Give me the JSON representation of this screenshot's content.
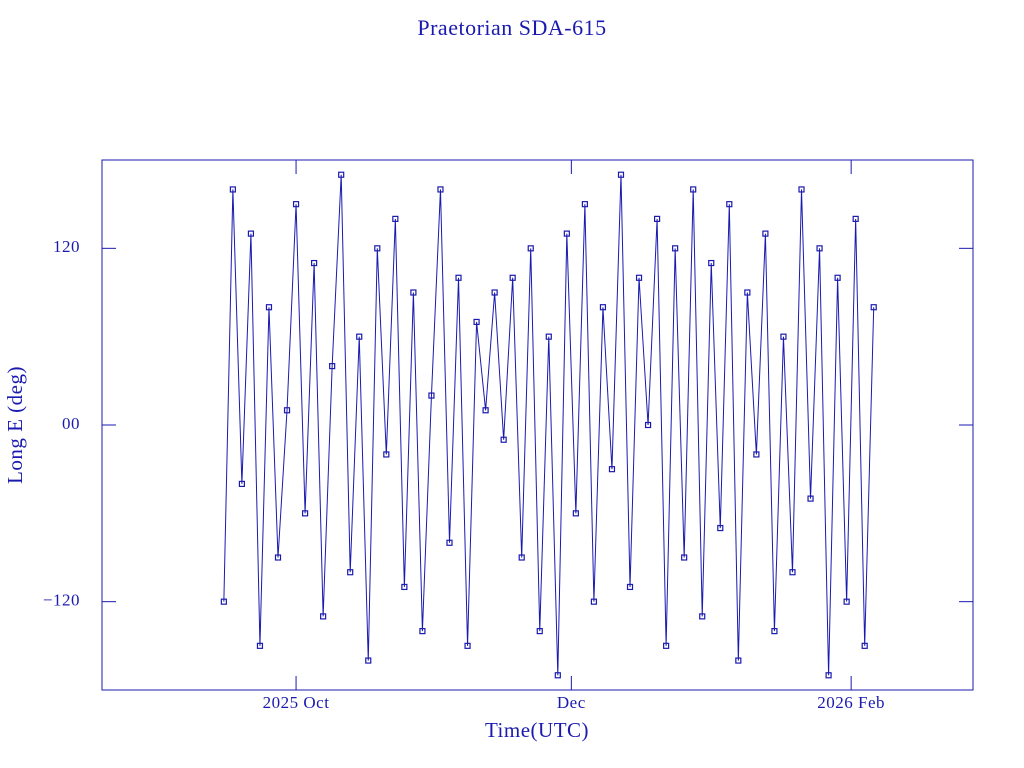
{
  "chart_data": {
    "type": "line",
    "title": "Praetorian SDA-615",
    "x_label": "Time(UTC)",
    "y_label": "Long E (deg)",
    "color": "#1a1ab0",
    "markers": true,
    "xlim": [
      "2025-08-19",
      "2026-02-28"
    ],
    "xticks": [
      {
        "value": "2025-10-01",
        "label": "2025 Oct"
      },
      {
        "value": "2025-12-01",
        "label": "Dec"
      },
      {
        "value": "2026-02-01",
        "label": "2026 Feb"
      }
    ],
    "ylim": [
      -180,
      180
    ],
    "yticks": [
      {
        "value": -120,
        "label": "−120"
      },
      {
        "value": 0,
        "label": "00"
      },
      120
    ],
    "x": [
      "2025-09-15",
      "2025-09-17",
      "2025-09-19",
      "2025-09-21",
      "2025-09-23",
      "2025-09-25",
      "2025-09-27",
      "2025-09-29",
      "2025-10-01",
      "2025-10-03",
      "2025-10-05",
      "2025-10-07",
      "2025-10-09",
      "2025-10-11",
      "2025-10-13",
      "2025-10-15",
      "2025-10-17",
      "2025-10-19",
      "2025-10-21",
      "2025-10-23",
      "2025-10-25",
      "2025-10-27",
      "2025-10-29",
      "2025-10-31",
      "2025-11-02",
      "2025-11-04",
      "2025-11-06",
      "2025-11-08",
      "2025-11-10",
      "2025-11-12",
      "2025-11-14",
      "2025-11-16",
      "2025-11-18",
      "2025-11-20",
      "2025-11-22",
      "2025-11-24",
      "2025-11-26",
      "2025-11-28",
      "2025-11-30",
      "2025-12-02",
      "2025-12-04",
      "2025-12-06",
      "2025-12-08",
      "2025-12-10",
      "2025-12-12",
      "2025-12-14",
      "2025-12-16",
      "2025-12-18",
      "2025-12-20",
      "2025-12-22",
      "2025-12-24",
      "2025-12-26",
      "2025-12-28",
      "2025-12-30",
      "2026-01-01",
      "2026-01-03",
      "2026-01-05",
      "2026-01-07",
      "2026-01-09",
      "2026-01-11",
      "2026-01-13",
      "2026-01-15",
      "2026-01-17",
      "2026-01-19",
      "2026-01-21",
      "2026-01-23",
      "2026-01-25",
      "2026-01-27",
      "2026-01-29",
      "2026-01-31",
      "2026-02-02",
      "2026-02-04",
      "2026-02-06"
    ],
    "values": [
      -120,
      160,
      -40,
      130,
      -150,
      80,
      -90,
      10,
      150,
      -60,
      110,
      -130,
      40,
      170,
      -100,
      60,
      -160,
      120,
      -20,
      140,
      -110,
      90,
      -140,
      20,
      160,
      -80,
      100,
      -150,
      70,
      10,
      90,
      -10,
      100,
      -90,
      120,
      -140,
      60,
      -170,
      130,
      -60,
      150,
      -120,
      80,
      -30,
      170,
      -110,
      100,
      0,
      140,
      -150,
      120,
      -90,
      160,
      -130,
      110,
      -70,
      150,
      -160,
      90,
      -20,
      130,
      -140,
      60,
      -100,
      160,
      -50,
      120,
      -170,
      100,
      -120,
      140,
      -150,
      80
    ]
  }
}
